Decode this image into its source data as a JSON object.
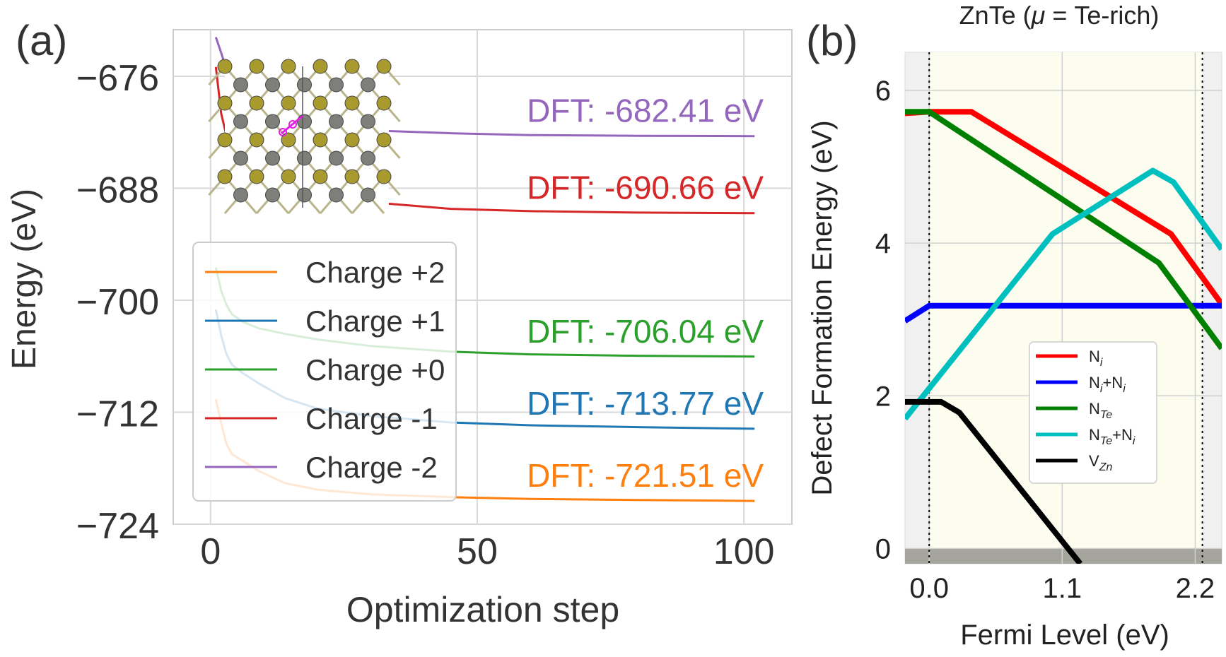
{
  "panel_a_label": "(a)",
  "panel_b_label": "(b)",
  "chart_data": [
    {
      "type": "line",
      "panel": "a",
      "title": "",
      "xlabel": "Optimization step",
      "ylabel": "Energy (eV)",
      "xlim": [
        -7,
        109
      ],
      "ylim": [
        -724,
        -671
      ],
      "xticks": [
        0,
        50,
        100
      ],
      "xtick_labels": [
        "0",
        "50",
        "100"
      ],
      "yticks": [
        -676,
        -688,
        -700,
        -712,
        -724
      ],
      "ytick_labels": [
        "−676",
        "−688",
        "−700",
        "−712",
        "−724"
      ],
      "grid": true,
      "legend_position": "lower-left",
      "series": [
        {
          "name": "Charge +2",
          "color": "#ff7f0e",
          "final_label": "DFT: -721.51 eV",
          "x": [
            1,
            2,
            3,
            4,
            6,
            9,
            14,
            20,
            30,
            45,
            60,
            80,
            102
          ],
          "y": [
            -710.6,
            -713.2,
            -715.4,
            -716.5,
            -717.2,
            -718.3,
            -719.6,
            -720.3,
            -720.8,
            -721.1,
            -721.3,
            -721.4,
            -721.51
          ]
        },
        {
          "name": "Charge +1",
          "color": "#1f77b4",
          "final_label": "DFT: -713.77 eV",
          "x": [
            1,
            2,
            3,
            4,
            6,
            9,
            14,
            20,
            30,
            45,
            60,
            80,
            102
          ],
          "y": [
            -701.0,
            -703.8,
            -705.8,
            -706.9,
            -707.8,
            -708.9,
            -710.5,
            -711.6,
            -712.4,
            -713.1,
            -713.4,
            -713.6,
            -713.77
          ]
        },
        {
          "name": "Charge +0",
          "color": "#2ca02c",
          "final_label": "DFT: -706.04 eV",
          "x": [
            1,
            2,
            3,
            4,
            6,
            9,
            14,
            20,
            30,
            45,
            60,
            80,
            102
          ],
          "y": [
            -696.5,
            -699.0,
            -700.5,
            -701.5,
            -702.3,
            -703.0,
            -703.6,
            -704.2,
            -704.9,
            -705.5,
            -705.8,
            -705.95,
            -706.04
          ]
        },
        {
          "name": "Charge -1",
          "color": "#d62728",
          "final_label": "DFT: -690.66 eV",
          "x": [
            1,
            2,
            3,
            4,
            6,
            9,
            14,
            20,
            30,
            45,
            60,
            80,
            102
          ],
          "y": [
            -675.0,
            -680.0,
            -682.4,
            -683.5,
            -684.4,
            -685.5,
            -687.0,
            -688.4,
            -689.5,
            -690.2,
            -690.45,
            -690.6,
            -690.66
          ]
        },
        {
          "name": "Charge -2",
          "color": "#9467bd",
          "final_label": "DFT: -682.41 eV",
          "x": [
            1,
            2,
            3,
            4,
            6,
            9,
            14,
            20,
            30,
            45,
            60,
            80,
            102
          ],
          "y": [
            -671.8,
            -673.5,
            -675.3,
            -676.5,
            -677.6,
            -678.6,
            -680.0,
            -681.0,
            -681.8,
            -682.1,
            -682.3,
            -682.37,
            -682.41
          ]
        }
      ]
    },
    {
      "type": "line",
      "panel": "b",
      "title": "ZnTe (μ = Te-rich)",
      "title_pre": "ZnTe (",
      "title_mu": "μ",
      "title_post": " = Te-rich)",
      "xlabel": "Fermi Level (eV)",
      "ylabel": "Defect Formation Energy (eV)",
      "xlim": [
        -0.2,
        2.42
      ],
      "ylim": [
        -0.2,
        6.5
      ],
      "xticks": [
        0.0,
        1.1,
        2.2
      ],
      "xtick_labels": [
        "0.0",
        "1.1",
        "2.2"
      ],
      "yticks": [
        0,
        2,
        4,
        6
      ],
      "ytick_labels": [
        "0",
        "2",
        "4",
        "6"
      ],
      "band_edges": [
        0.0,
        2.26
      ],
      "grid": true,
      "legend_position": "lower-right",
      "series": [
        {
          "name": "Ni",
          "label_main": "N",
          "label_sub": "i",
          "color": "#ff0000",
          "x": [
            -0.2,
            0.0,
            0.35,
            2.0,
            2.42
          ],
          "y": [
            5.7,
            5.72,
            5.72,
            4.12,
            3.2
          ]
        },
        {
          "name": "Ni+Ni",
          "label_main": "N",
          "label_sub": "i",
          "label_mid": "+N",
          "label_sub2": "i",
          "color": "#0000ff",
          "x": [
            -0.2,
            0.0,
            2.42
          ],
          "y": [
            2.98,
            3.18,
            3.18
          ]
        },
        {
          "name": "NTe",
          "label_main": "N",
          "label_sub": "Te",
          "color": "#008000",
          "x": [
            -0.2,
            0.0,
            1.9,
            2.42
          ],
          "y": [
            5.72,
            5.72,
            3.74,
            2.62
          ]
        },
        {
          "name": "NTe+Ni",
          "label_main": "N",
          "label_sub": "Te",
          "label_mid": "+N",
          "label_sub2": "i",
          "color": "#00bfbf",
          "x": [
            -0.2,
            1.02,
            1.85,
            2.02,
            2.42
          ],
          "y": [
            1.7,
            4.12,
            4.95,
            4.8,
            3.92
          ]
        },
        {
          "name": "VZn",
          "label_main": "V",
          "label_sub": "Zn",
          "color": "#000000",
          "x": [
            -0.2,
            0.1,
            0.25,
            1.25
          ],
          "y": [
            1.92,
            1.92,
            1.78,
            -0.2
          ]
        }
      ]
    }
  ]
}
